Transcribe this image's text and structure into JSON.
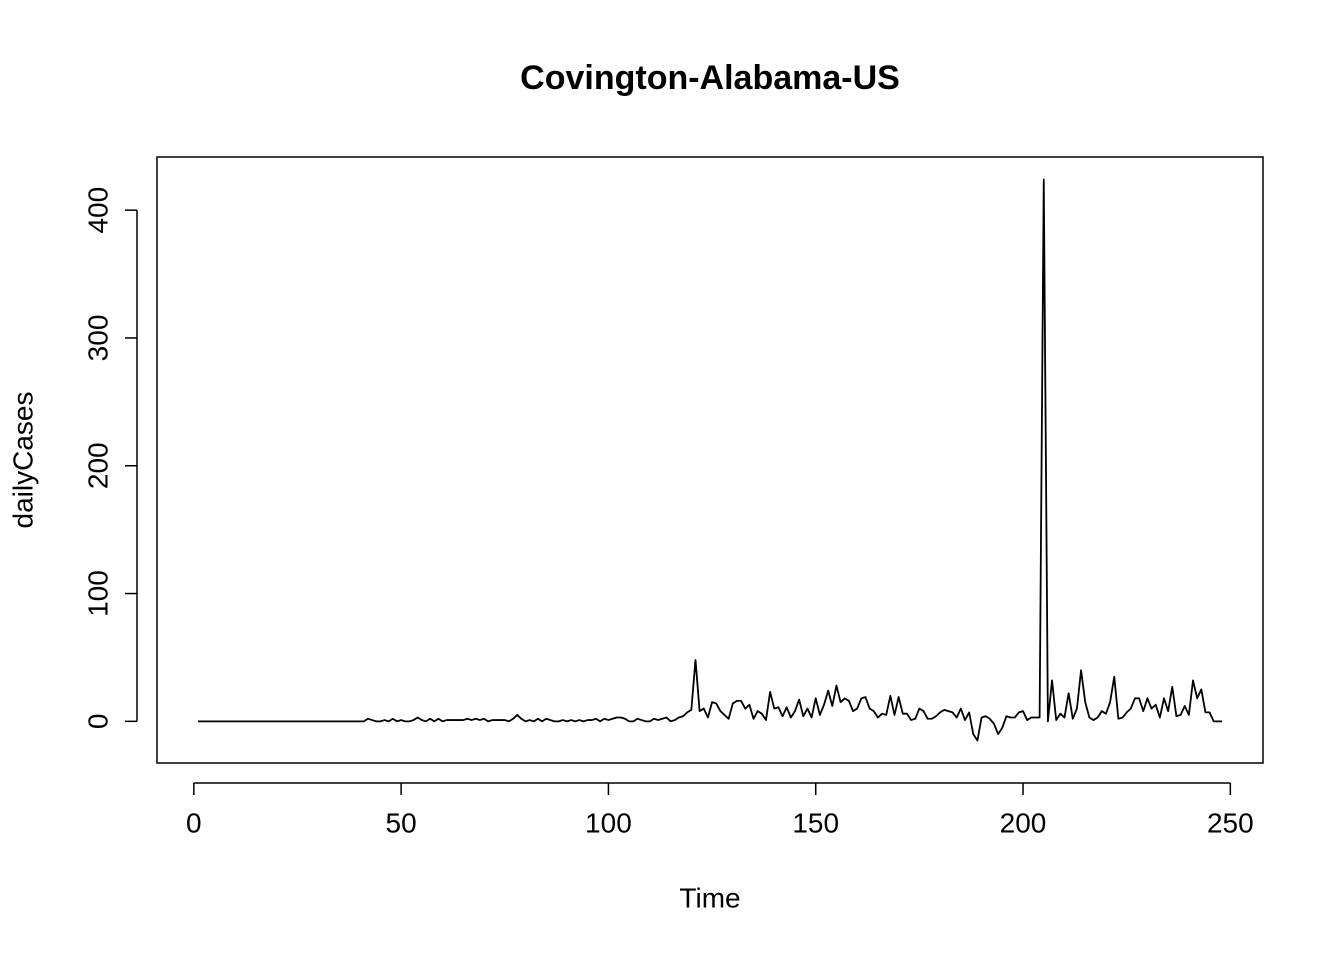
{
  "chart_data": {
    "type": "line",
    "title": "Covington-Alabama-US",
    "x_label": "Time",
    "y_label": "dailyCases",
    "x": [
      1,
      2,
      3,
      4,
      5,
      6,
      7,
      8,
      9,
      10,
      11,
      12,
      13,
      14,
      15,
      16,
      17,
      18,
      19,
      20,
      21,
      22,
      23,
      24,
      25,
      26,
      27,
      28,
      29,
      30,
      31,
      32,
      33,
      34,
      35,
      36,
      37,
      38,
      39,
      40,
      41,
      42,
      43,
      44,
      45,
      46,
      47,
      48,
      49,
      50,
      51,
      52,
      53,
      54,
      55,
      56,
      57,
      58,
      59,
      60,
      61,
      62,
      63,
      64,
      65,
      66,
      67,
      68,
      69,
      70,
      71,
      72,
      73,
      74,
      75,
      76,
      77,
      78,
      79,
      80,
      81,
      82,
      83,
      84,
      85,
      86,
      87,
      88,
      89,
      90,
      91,
      92,
      93,
      94,
      95,
      96,
      97,
      98,
      99,
      100,
      101,
      102,
      103,
      104,
      105,
      106,
      107,
      108,
      109,
      110,
      111,
      112,
      113,
      114,
      115,
      116,
      117,
      118,
      119,
      120,
      121,
      122,
      123,
      124,
      125,
      126,
      127,
      128,
      129,
      130,
      131,
      132,
      133,
      134,
      135,
      136,
      137,
      138,
      139,
      140,
      141,
      142,
      143,
      144,
      145,
      146,
      147,
      148,
      149,
      150,
      151,
      152,
      153,
      154,
      155,
      156,
      157,
      158,
      159,
      160,
      161,
      162,
      163,
      164,
      165,
      166,
      167,
      168,
      169,
      170,
      171,
      172,
      173,
      174,
      175,
      176,
      177,
      178,
      179,
      180,
      181,
      182,
      183,
      184,
      185,
      186,
      187,
      188,
      189,
      190,
      191,
      192,
      193,
      194,
      195,
      196,
      197,
      198,
      199,
      200,
      201,
      202,
      203,
      204,
      205,
      206,
      207,
      208,
      209,
      210,
      211,
      212,
      213,
      214,
      215,
      216,
      217,
      218,
      219,
      220,
      221,
      222,
      223,
      224,
      225,
      226,
      227,
      228,
      229,
      230,
      231,
      232,
      233,
      234,
      235,
      236,
      237,
      238,
      239,
      240,
      241,
      242,
      243,
      244,
      245,
      246,
      247,
      248
    ],
    "series": [
      {
        "name": "dailyCases",
        "color": "#000000",
        "values": [
          0,
          0,
          0,
          0,
          0,
          0,
          0,
          0,
          0,
          0,
          0,
          0,
          0,
          0,
          0,
          0,
          0,
          0,
          0,
          0,
          0,
          0,
          0,
          0,
          0,
          0,
          0,
          0,
          0,
          0,
          0,
          0,
          0,
          0,
          0,
          0,
          0,
          0,
          0,
          0,
          0,
          2,
          1,
          0,
          0,
          1,
          0,
          2,
          0,
          1,
          0,
          0,
          1,
          3,
          1,
          0,
          2,
          0,
          2,
          0,
          1,
          1,
          1,
          1,
          1,
          2,
          1,
          2,
          1,
          2,
          0,
          1,
          1,
          1,
          1,
          0,
          2,
          5,
          2,
          0,
          1,
          0,
          2,
          0,
          2,
          1,
          0,
          0,
          1,
          0,
          1,
          0,
          1,
          0,
          1,
          1,
          2,
          0,
          2,
          1,
          2,
          3,
          3,
          2,
          0,
          0,
          2,
          1,
          0,
          0,
          2,
          1,
          2,
          3,
          0,
          1,
          3,
          4,
          7,
          9,
          48,
          8,
          10,
          3,
          15,
          14,
          8,
          5,
          2,
          14,
          16,
          16,
          10,
          13,
          2,
          8,
          6,
          1,
          23,
          10,
          11,
          4,
          11,
          3,
          8,
          17,
          4,
          10,
          3,
          18,
          5,
          13,
          24,
          12,
          28,
          15,
          18,
          16,
          8,
          10,
          18,
          19,
          10,
          8,
          3,
          6,
          5,
          20,
          5,
          19,
          6,
          6,
          1,
          2,
          10,
          8,
          2,
          2,
          4,
          7,
          9,
          8,
          7,
          3,
          10,
          1,
          7,
          -10,
          -15,
          3,
          4,
          2,
          -2,
          -10,
          -5,
          4,
          3,
          3,
          7,
          8,
          1,
          3,
          3,
          3,
          424,
          0,
          32,
          1,
          6,
          3,
          22,
          2,
          10,
          40,
          15,
          3,
          1,
          3,
          8,
          6,
          15,
          35,
          2,
          3,
          7,
          10,
          18,
          18,
          8,
          18,
          10,
          13,
          3,
          18,
          8,
          27,
          4,
          5,
          12,
          5,
          32,
          18,
          25,
          7,
          7,
          0,
          0,
          0
        ]
      }
    ],
    "xlim": [
      -8.88,
      257.88
    ],
    "ylim": [
      -32.6,
      441.6
    ],
    "xticks": [
      0,
      50,
      100,
      150,
      200,
      250
    ],
    "yticks": [
      0,
      100,
      200,
      300,
      400
    ]
  }
}
